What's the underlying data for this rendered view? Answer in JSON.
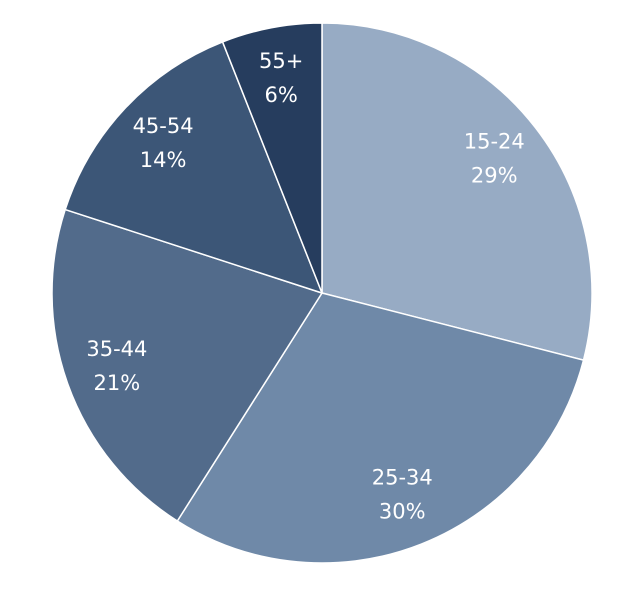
{
  "chart_data": {
    "type": "pie",
    "categories": [
      "15-24",
      "25-34",
      "35-44",
      "45-54",
      "55+"
    ],
    "values": [
      29,
      30,
      21,
      14,
      6
    ],
    "value_labels": [
      "29%",
      "30%",
      "21%",
      "14%",
      "6%"
    ],
    "colors": [
      "#97abc4",
      "#6f89a8",
      "#526b8b",
      "#3c5677",
      "#263d5e"
    ]
  }
}
